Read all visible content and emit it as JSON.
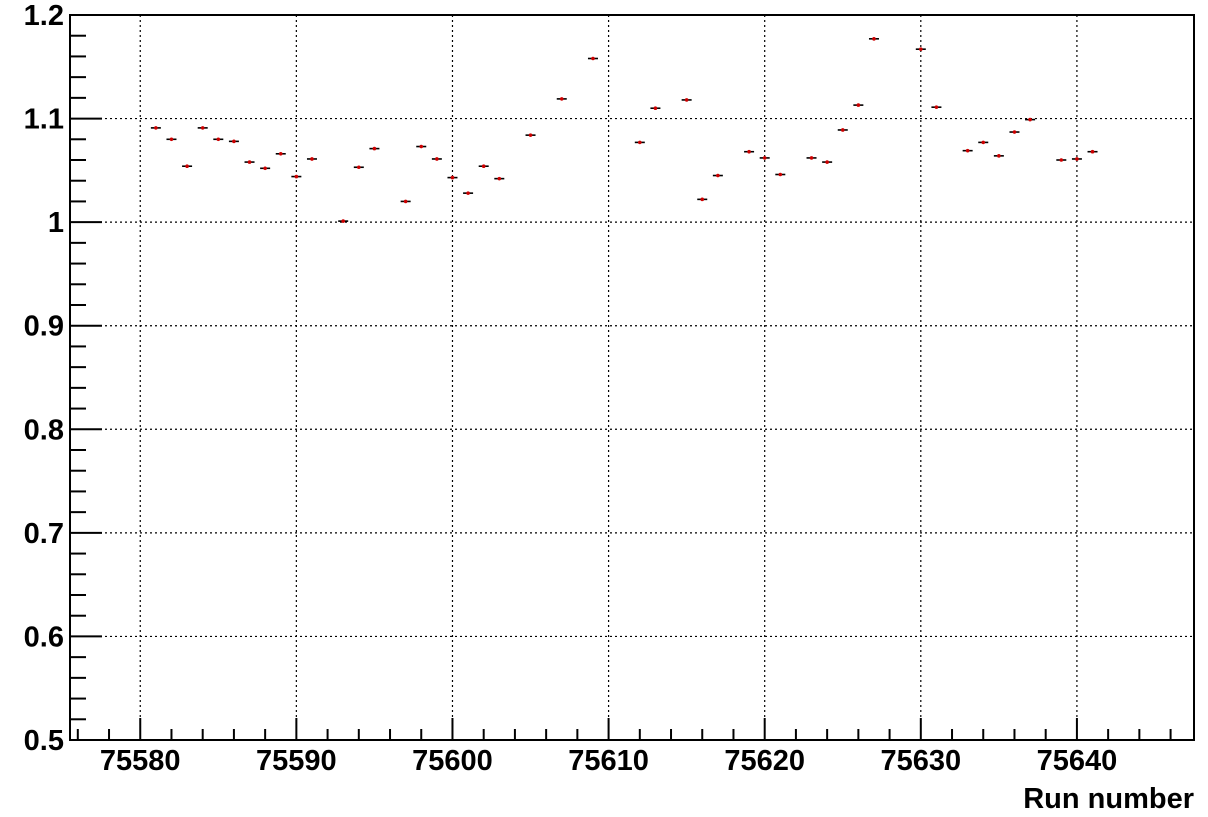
{
  "chart_data": {
    "type": "scatter",
    "title": "",
    "xlabel": "Run number",
    "ylabel": "",
    "xlim": [
      75575.5,
      75647.5
    ],
    "ylim": [
      0.5,
      1.2
    ],
    "x_ticks": [
      75580,
      75590,
      75600,
      75610,
      75620,
      75630,
      75640
    ],
    "x_tick_labels": [
      "75580",
      "75590",
      "75600",
      "75610",
      "75620",
      "75630",
      "75640"
    ],
    "y_ticks": [
      0.5,
      0.6,
      0.7,
      0.8,
      0.9,
      1.0,
      1.1,
      1.2
    ],
    "y_tick_labels": [
      "0.5",
      "0.6",
      "0.7",
      "0.8",
      "0.9",
      "1",
      "1.1",
      "1.2"
    ],
    "grid": true,
    "marker_color": "#cc0000",
    "series": [
      {
        "x": [
          75581,
          75582,
          75583,
          75584,
          75585,
          75586,
          75587,
          75588,
          75589,
          75590,
          75591,
          75593,
          75594,
          75595,
          75597,
          75598,
          75599,
          75600,
          75601,
          75602,
          75603,
          75605,
          75607,
          75609,
          75612,
          75613,
          75615,
          75616,
          75617,
          75619,
          75620,
          75621,
          75623,
          75624,
          75625,
          75626,
          75627,
          75630,
          75631,
          75633,
          75634,
          75635,
          75636,
          75637,
          75639,
          75640,
          75641
        ],
        "y": [
          1.091,
          1.08,
          1.054,
          1.091,
          1.08,
          1.078,
          1.058,
          1.052,
          1.066,
          1.044,
          1.061,
          1.001,
          1.053,
          1.071,
          1.02,
          1.073,
          1.061,
          1.043,
          1.028,
          1.054,
          1.042,
          1.084,
          1.119,
          1.158,
          1.077,
          1.11,
          1.118,
          1.022,
          1.045,
          1.068,
          1.062,
          1.046,
          1.062,
          1.058,
          1.089,
          1.113,
          1.177,
          1.167,
          1.111,
          1.069,
          1.077,
          1.064,
          1.087,
          1.099,
          1.06,
          1.061,
          1.068
        ]
      }
    ]
  }
}
